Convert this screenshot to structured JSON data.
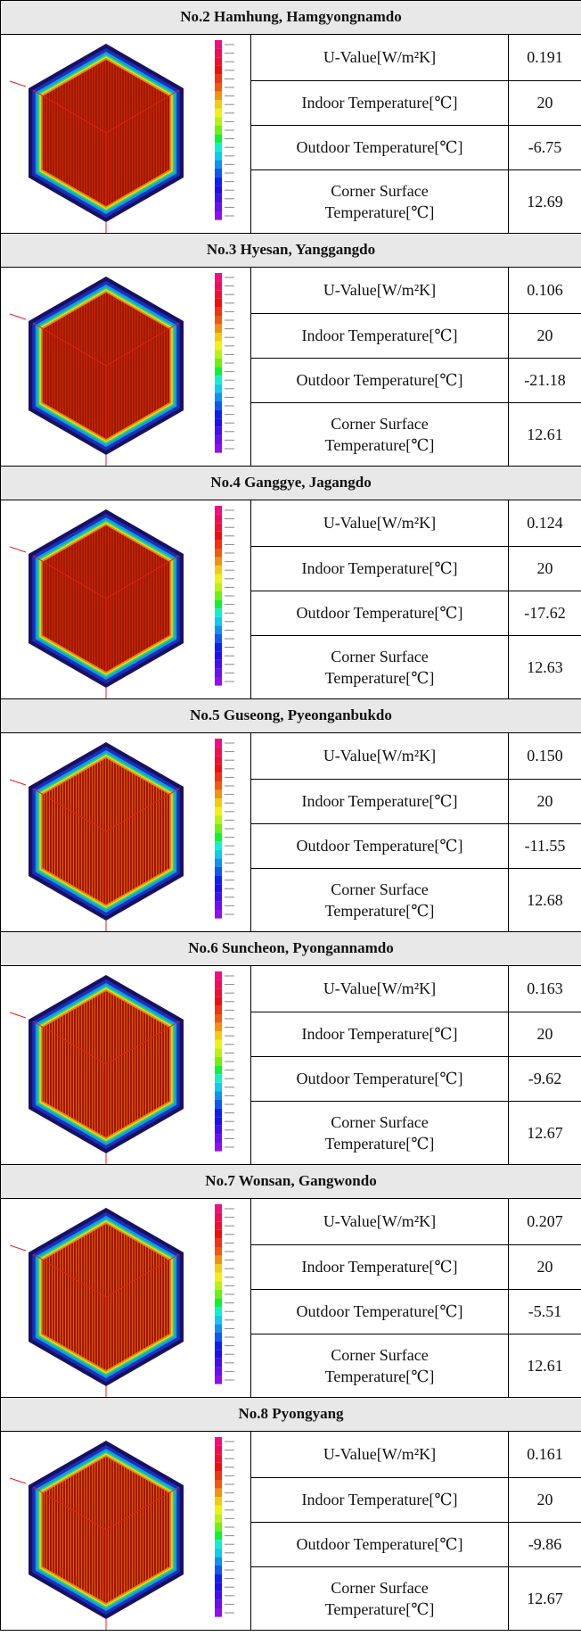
{
  "sections": [
    {
      "title": "No.2  Hamhung,  Hamgyongnamdo",
      "rows": [
        {
          "label": "U-Value[W/m²K]",
          "value": "0.191"
        },
        {
          "label": "Indoor Temperature[℃]",
          "value": "20"
        },
        {
          "label": "Outdoor Temperature[℃]",
          "value": "-6.75"
        },
        {
          "label": "Corner Surface Temperature[℃]",
          "value": "12.69"
        }
      ]
    },
    {
      "title": "No.3  Hyesan,  Yanggangdo",
      "rows": [
        {
          "label": "U-Value[W/m²K]",
          "value": "0.106"
        },
        {
          "label": "Indoor Temperature[℃]",
          "value": "20"
        },
        {
          "label": "Outdoor Temperature[℃]",
          "value": "-21.18"
        },
        {
          "label": "Corner Surface Temperature[℃]",
          "value": "12.61"
        }
      ]
    },
    {
      "title": "No.4  Ganggye,  Jagangdo",
      "rows": [
        {
          "label": "U-Value[W/m²K]",
          "value": "0.124"
        },
        {
          "label": "Indoor Temperature[℃]",
          "value": "20"
        },
        {
          "label": "Outdoor Temperature[℃]",
          "value": "-17.62"
        },
        {
          "label": "Corner Surface Temperature[℃]",
          "value": "12.63"
        }
      ]
    },
    {
      "title": "No.5  Guseong,  Pyeonganbukdo",
      "rows": [
        {
          "label": "U-Value[W/m²K]",
          "value": "0.150"
        },
        {
          "label": "Indoor Temperature[℃]",
          "value": "20"
        },
        {
          "label": "Outdoor Temperature[℃]",
          "value": "-11.55"
        },
        {
          "label": "Corner Surface Temperature[℃]",
          "value": "12.68"
        }
      ]
    },
    {
      "title": "No.6  Suncheon,  Pyongannamdo",
      "rows": [
        {
          "label": "U-Value[W/m²K]",
          "value": "0.163"
        },
        {
          "label": "Indoor Temperature[℃]",
          "value": "20"
        },
        {
          "label": "Outdoor Temperature[℃]",
          "value": "-9.62"
        },
        {
          "label": "Corner Surface Temperature[℃]",
          "value": "12.67"
        }
      ]
    },
    {
      "title": "No.7  Wonsan,  Gangwondo",
      "rows": [
        {
          "label": "U-Value[W/m²K]",
          "value": "0.207"
        },
        {
          "label": "Indoor Temperature[℃]",
          "value": "20"
        },
        {
          "label": "Outdoor Temperature[℃]",
          "value": "-5.51"
        },
        {
          "label": "Corner Surface Temperature[℃]",
          "value": "12.61"
        }
      ]
    },
    {
      "title": "No.8  Pyongyang",
      "rows": [
        {
          "label": "U-Value[W/m²K]",
          "value": "0.161"
        },
        {
          "label": "Indoor Temperature[℃]",
          "value": "20"
        },
        {
          "label": "Outdoor Temperature[℃]",
          "value": "-9.86"
        },
        {
          "label": "Corner Surface Temperature[℃]",
          "value": "12.67"
        }
      ]
    }
  ]
}
